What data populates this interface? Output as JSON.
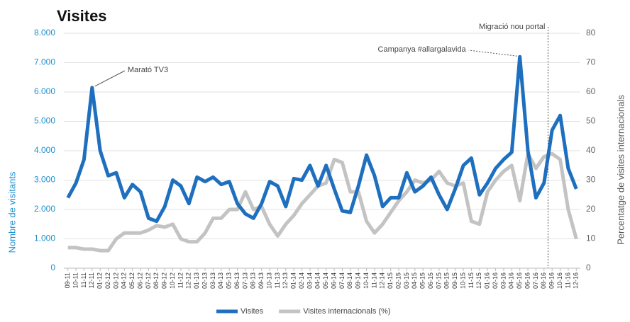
{
  "chart_data": {
    "type": "line",
    "title": "Visites",
    "y_label": "Nombre de visitants",
    "y2_label": "Percentatge de visites internacionals",
    "categories": [
      "09-11",
      "10-11",
      "11-11",
      "12-11",
      "01-12",
      "02-12",
      "03-12",
      "04-12",
      "05-12",
      "06-12",
      "07-12",
      "08-12",
      "09-12",
      "10-12",
      "11-12",
      "12-12",
      "01-13",
      "02-13",
      "03-13",
      "04-13",
      "05-13",
      "06-13",
      "07-13",
      "08-13",
      "09-13",
      "10-13",
      "11-13",
      "12-13",
      "01-14",
      "02-14",
      "03-14",
      "04-14",
      "05-14",
      "06-14",
      "07-14",
      "08-14",
      "09-14",
      "10-14",
      "11-14",
      "12-14",
      "01-15",
      "02-15",
      "03-15",
      "04-15",
      "05-15",
      "06-15",
      "07-15",
      "08-15",
      "09-15",
      "10-15",
      "11-15",
      "12-15",
      "01-16",
      "02-16",
      "03-16",
      "04-16",
      "05-16",
      "06-16",
      "07-16",
      "08-16",
      "09-16",
      "10-16",
      "11-16",
      "12-16"
    ],
    "series": [
      {
        "name": "Visites",
        "color": "#1f6fbf",
        "axis": "y",
        "values": [
          2400,
          2900,
          3700,
          6150,
          4000,
          3150,
          3250,
          2400,
          2850,
          2600,
          1700,
          1600,
          2100,
          3000,
          2800,
          2200,
          3100,
          2950,
          3100,
          2850,
          2950,
          2200,
          1850,
          1700,
          2200,
          2950,
          2800,
          2100,
          3050,
          3000,
          3500,
          2800,
          3500,
          2700,
          1950,
          1900,
          2800,
          3850,
          3150,
          2100,
          2400,
          2400,
          3250,
          2600,
          2800,
          3100,
          2500,
          2000,
          2700,
          3500,
          3750,
          2500,
          2900,
          3400,
          3700,
          3950,
          7200,
          4000,
          2400,
          2900,
          4700,
          5200,
          3400,
          2700
        ]
      },
      {
        "name": "Visites internacionals (%)",
        "color": "#c3c3c3",
        "axis": "y2",
        "values": [
          7,
          7,
          6.5,
          6.5,
          6,
          6,
          10,
          12,
          12,
          12,
          13,
          14.5,
          14,
          15,
          10,
          9,
          9,
          12,
          17,
          17,
          20,
          20,
          26,
          20,
          21,
          15,
          11,
          15,
          18,
          22,
          25,
          28,
          29,
          37,
          36,
          26,
          26,
          16,
          12,
          15,
          19,
          23,
          26,
          30,
          29,
          30,
          33,
          29,
          28,
          29,
          16,
          15,
          26,
          30,
          33,
          35,
          23,
          39,
          34,
          38,
          39,
          37,
          20,
          10
        ]
      }
    ],
    "ylim": [
      0,
      8000
    ],
    "yticks": [
      0,
      {
        "value": 1000,
        "label": "1.000"
      },
      {
        "value": 2000,
        "label": "2.000"
      },
      {
        "value": 3000,
        "label": "3.000"
      },
      {
        "value": 4000,
        "label": "4.000"
      },
      {
        "value": 5000,
        "label": "5.000"
      },
      {
        "value": 6000,
        "label": "6.000"
      },
      {
        "value": 7000,
        "label": "7.000"
      },
      {
        "value": 8000,
        "label": "8.000"
      }
    ],
    "y2lim": [
      0,
      80
    ],
    "y2ticks": [
      0,
      10,
      20,
      30,
      40,
      50,
      60,
      70,
      80
    ],
    "grid": true,
    "legend": "bottom",
    "annotations": [
      {
        "text": "Marató TV3",
        "category": "12-11"
      },
      {
        "text": "Campanya #allargalavida",
        "category": "05-16"
      },
      {
        "text": "Migració nou portal",
        "category": "09-16"
      }
    ]
  }
}
